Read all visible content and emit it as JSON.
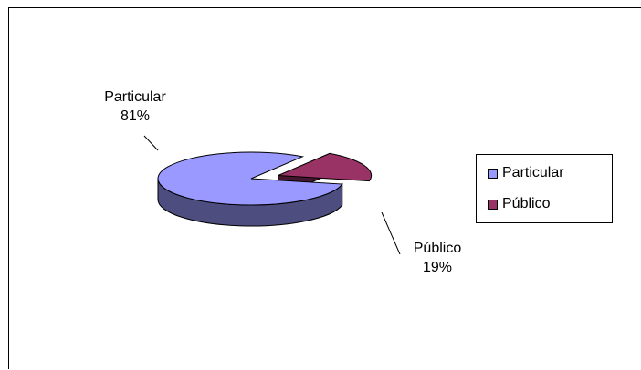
{
  "chart_data": {
    "type": "pie",
    "variant": "3d-exploded",
    "title": "",
    "legend_position": "right",
    "slices": [
      {
        "name": "Particular",
        "value": 81,
        "label_name": "Particular",
        "label_value": "81%",
        "color": "#9999FF"
      },
      {
        "name": "Público",
        "value": 19,
        "label_name": "Público",
        "label_value": "19%",
        "color": "#993366"
      }
    ]
  },
  "legend": {
    "items": [
      {
        "label": "Particular",
        "color": "#9999FF"
      },
      {
        "label": "Público",
        "color": "#993366"
      }
    ]
  }
}
